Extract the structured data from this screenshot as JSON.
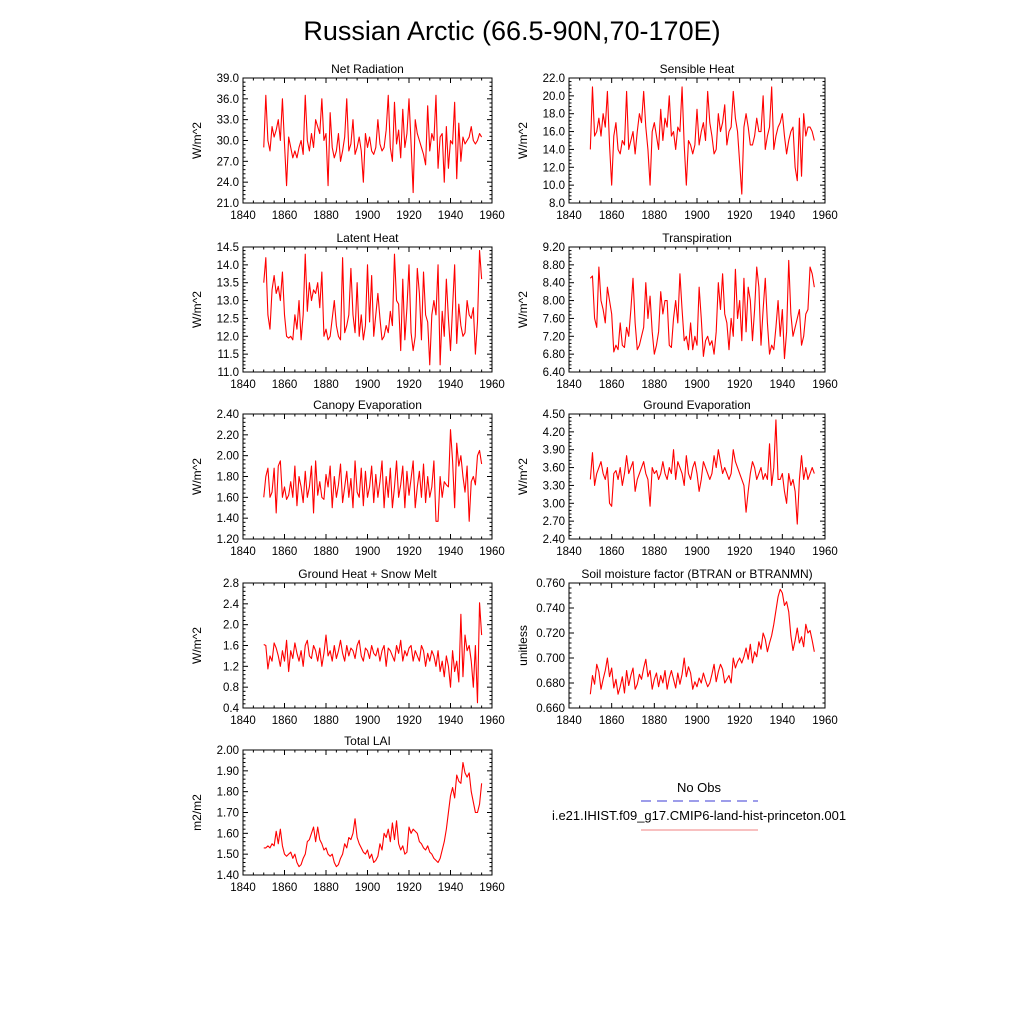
{
  "figure": {
    "title": "Russian Arctic (66.5-90N,70-170E)",
    "legend": {
      "obs_label": "No Obs",
      "model_label": "i.e21.IHIST.f09_g17.CMIP6-land-hist-princeton.001",
      "obs_color": "#3b3bd6",
      "model_color": "#f08080"
    }
  },
  "colors": {
    "series": "#ff0000",
    "axis": "#000000"
  },
  "chart_data": [
    {
      "type": "line",
      "title": "Net Radiation",
      "ylabel": "W/m^2",
      "xlim": [
        1840,
        1960
      ],
      "ylim": [
        21.0,
        39.0
      ],
      "xticks": [
        1840,
        1860,
        1880,
        1900,
        1920,
        1940,
        1960
      ],
      "yticks": [
        "21.0",
        "24.0",
        "27.0",
        "30.0",
        "33.0",
        "36.0",
        "39.0"
      ],
      "x_start": 1850,
      "values": [
        29.0,
        36.5,
        30.0,
        28.5,
        32.0,
        30.5,
        31.5,
        33.0,
        30.0,
        36.0,
        29.5,
        23.5,
        30.5,
        29.0,
        27.5,
        28.5,
        27.5,
        29.0,
        30.0,
        28.0,
        36.5,
        30.0,
        28.5,
        31.0,
        29.0,
        33.0,
        32.0,
        31.0,
        36.0,
        30.0,
        31.0,
        23.5,
        34.0,
        29.0,
        27.5,
        28.5,
        31.0,
        27.0,
        28.5,
        30.5,
        36.0,
        28.5,
        29.5,
        33.0,
        28.0,
        29.0,
        30.5,
        28.5,
        24.0,
        31.0,
        29.0,
        30.5,
        28.5,
        28.0,
        29.0,
        33.0,
        29.5,
        28.5,
        29.0,
        31.5,
        36.5,
        29.0,
        27.0,
        35.5,
        29.5,
        31.5,
        27.5,
        34.5,
        29.0,
        31.0,
        36.0,
        29.5,
        22.5,
        33.0,
        31.0,
        30.0,
        29.0,
        28.0,
        26.5,
        35.0,
        28.5,
        31.0,
        30.0,
        36.5,
        26.0,
        30.5,
        31.0,
        24.0,
        32.0,
        26.0,
        30.0,
        29.5,
        35.5,
        24.5,
        32.5,
        27.0,
        30.5,
        29.5,
        30.0,
        30.5,
        32.0,
        30.0,
        29.5,
        30.0,
        31.0,
        30.5
      ]
    },
    {
      "type": "line",
      "title": "Sensible Heat",
      "ylabel": "W/m^2",
      "xlim": [
        1840,
        1960
      ],
      "ylim": [
        8.0,
        22.0
      ],
      "xticks": [
        1840,
        1860,
        1880,
        1900,
        1920,
        1940,
        1960
      ],
      "yticks": [
        "8.0",
        "10.0",
        "12.0",
        "14.0",
        "16.0",
        "18.0",
        "20.0",
        "22.0"
      ],
      "x_start": 1850,
      "values": [
        14.0,
        21.0,
        15.5,
        16.0,
        17.5,
        15.5,
        18.0,
        16.5,
        20.5,
        14.5,
        10.0,
        15.5,
        17.0,
        14.0,
        13.5,
        15.0,
        14.5,
        20.5,
        14.0,
        15.0,
        16.0,
        13.5,
        16.0,
        18.0,
        17.0,
        20.5,
        16.5,
        14.0,
        10.0,
        16.0,
        17.0,
        15.5,
        14.0,
        18.5,
        15.0,
        17.5,
        16.5,
        20.0,
        15.5,
        16.0,
        14.0,
        16.5,
        16.0,
        21.0,
        14.5,
        10.0,
        15.0,
        14.5,
        13.5,
        14.5,
        18.5,
        14.5,
        16.0,
        17.0,
        15.0,
        20.5,
        17.0,
        15.5,
        13.5,
        14.0,
        18.0,
        16.0,
        17.0,
        19.0,
        14.5,
        16.0,
        16.5,
        20.5,
        17.5,
        16.0,
        12.5,
        9.0,
        16.5,
        18.0,
        16.5,
        14.5,
        14.5,
        15.5,
        17.5,
        16.0,
        16.0,
        20.0,
        14.0,
        15.5,
        16.5,
        21.0,
        14.0,
        15.5,
        16.5,
        17.0,
        18.0,
        15.5,
        13.5,
        15.0,
        16.0,
        16.5,
        12.0,
        10.5,
        17.5,
        11.0,
        18.0,
        15.5,
        16.5,
        16.5,
        16.0,
        15.0
      ]
    },
    {
      "type": "line",
      "title": "Latent Heat",
      "ylabel": "W/m^2",
      "xlim": [
        1840,
        1960
      ],
      "ylim": [
        11.0,
        14.5
      ],
      "xticks": [
        1840,
        1860,
        1880,
        1900,
        1920,
        1940,
        1960
      ],
      "yticks": [
        "11.0",
        "11.5",
        "12.0",
        "12.5",
        "13.0",
        "13.5",
        "14.0",
        "14.5"
      ],
      "x_start": 1850,
      "values": [
        13.5,
        14.2,
        12.6,
        12.2,
        13.3,
        13.7,
        13.2,
        13.4,
        13.0,
        13.8,
        12.6,
        12.0,
        11.95,
        12.0,
        11.9,
        12.6,
        12.2,
        13.0,
        11.9,
        12.6,
        14.3,
        12.7,
        13.5,
        13.0,
        13.3,
        13.2,
        13.5,
        12.8,
        13.8,
        12.0,
        12.2,
        11.9,
        12.0,
        12.5,
        13.0,
        12.3,
        12.0,
        11.9,
        14.2,
        12.1,
        12.3,
        12.6,
        13.9,
        12.6,
        12.1,
        13.5,
        12.0,
        12.6,
        11.9,
        12.3,
        14.0,
        12.4,
        13.7,
        12.0,
        12.6,
        13.2,
        12.5,
        11.9,
        12.0,
        12.3,
        12.1,
        12.7,
        12.3,
        14.3,
        13.0,
        12.9,
        11.6,
        13.6,
        11.9,
        12.8,
        14.0,
        12.1,
        11.6,
        12.0,
        13.9,
        13.2,
        11.9,
        13.8,
        12.6,
        12.4,
        11.2,
        12.6,
        13.0,
        12.6,
        14.0,
        11.2,
        12.7,
        12.0,
        13.6,
        12.5,
        11.6,
        12.8,
        14.0,
        11.8,
        12.9,
        12.3,
        12.0,
        12.1,
        13.0,
        12.6,
        12.5,
        12.8,
        11.5,
        12.4,
        14.4,
        13.6
      ]
    },
    {
      "type": "line",
      "title": "Transpiration",
      "ylabel": "W/m^2",
      "xlim": [
        1840,
        1960
      ],
      "ylim": [
        6.4,
        9.2
      ],
      "xticks": [
        1840,
        1860,
        1880,
        1900,
        1920,
        1940,
        1960
      ],
      "yticks": [
        "6.40",
        "6.80",
        "7.20",
        "7.60",
        "8.00",
        "8.40",
        "8.80",
        "9.20"
      ],
      "x_start": 1850,
      "values": [
        8.5,
        8.55,
        7.6,
        7.4,
        8.75,
        8.0,
        7.8,
        7.5,
        8.3,
        8.0,
        7.7,
        6.85,
        7.0,
        6.9,
        7.5,
        7.0,
        6.95,
        7.4,
        7.2,
        7.8,
        8.5,
        7.5,
        6.9,
        7.0,
        7.2,
        7.4,
        8.4,
        7.6,
        8.1,
        7.3,
        6.8,
        7.0,
        7.3,
        8.2,
        7.7,
        8.0,
        8.0,
        7.0,
        6.95,
        7.6,
        8.0,
        7.5,
        8.6,
        7.8,
        7.1,
        7.2,
        6.9,
        7.5,
        6.9,
        7.2,
        7.0,
        8.3,
        7.6,
        6.75,
        7.1,
        7.2,
        7.0,
        7.1,
        6.8,
        7.3,
        8.4,
        7.8,
        8.6,
        7.7,
        7.5,
        6.9,
        7.6,
        7.2,
        8.7,
        7.6,
        8.0,
        7.1,
        8.5,
        7.3,
        8.3,
        8.0,
        7.1,
        7.8,
        8.75,
        8.3,
        7.0,
        7.8,
        8.5,
        7.5,
        6.8,
        7.0,
        6.9,
        7.4,
        8.0,
        7.2,
        7.8,
        6.7,
        7.3,
        8.9,
        7.7,
        7.2,
        7.4,
        7.6,
        7.8,
        7.0,
        7.2,
        7.7,
        7.8,
        8.75,
        8.6,
        8.3
      ]
    },
    {
      "type": "line",
      "title": "Canopy Evaporation",
      "ylabel": "W/m^2",
      "xlim": [
        1840,
        1960
      ],
      "ylim": [
        1.2,
        2.4
      ],
      "xticks": [
        1840,
        1860,
        1880,
        1900,
        1920,
        1940,
        1960
      ],
      "yticks": [
        "1.20",
        "1.40",
        "1.60",
        "1.80",
        "2.00",
        "2.20",
        "2.40"
      ],
      "x_start": 1850,
      "values": [
        1.6,
        1.8,
        1.88,
        1.6,
        1.65,
        1.88,
        1.45,
        1.9,
        1.95,
        1.6,
        1.7,
        1.58,
        1.62,
        1.75,
        1.6,
        1.9,
        1.52,
        1.8,
        1.7,
        1.55,
        1.85,
        1.6,
        1.7,
        1.9,
        1.45,
        1.95,
        1.62,
        1.75,
        1.6,
        1.58,
        1.82,
        1.7,
        1.9,
        1.5,
        1.8,
        1.6,
        1.72,
        1.92,
        1.55,
        1.7,
        1.85,
        1.6,
        1.78,
        1.5,
        1.95,
        1.65,
        1.6,
        1.88,
        1.52,
        1.85,
        1.6,
        1.7,
        1.9,
        1.55,
        1.82,
        1.6,
        1.75,
        1.95,
        1.5,
        1.8,
        1.6,
        1.88,
        1.5,
        1.7,
        1.95,
        1.6,
        1.72,
        1.9,
        1.5,
        1.85,
        1.62,
        1.78,
        1.95,
        1.5,
        1.7,
        1.85,
        1.6,
        1.92,
        1.55,
        1.8,
        1.6,
        1.7,
        1.95,
        1.37,
        1.37,
        1.8,
        1.6,
        1.75,
        1.72,
        1.7,
        2.25,
        1.95,
        1.5,
        2.12,
        1.9,
        2.0,
        1.8,
        1.65,
        1.9,
        1.37,
        1.75,
        1.8,
        1.72,
        2.0,
        2.05,
        1.92
      ]
    },
    {
      "type": "line",
      "title": "Ground Evaporation",
      "ylabel": "W/m^2",
      "xlim": [
        1840,
        1960
      ],
      "ylim": [
        2.4,
        4.5
      ],
      "xticks": [
        1840,
        1860,
        1880,
        1900,
        1920,
        1940,
        1960
      ],
      "yticks": [
        "2.40",
        "2.70",
        "3.00",
        "3.30",
        "3.60",
        "3.90",
        "4.20",
        "4.50"
      ],
      "x_start": 1850,
      "values": [
        3.4,
        3.85,
        3.3,
        3.5,
        3.6,
        3.7,
        3.5,
        3.4,
        3.6,
        3.0,
        2.95,
        3.5,
        3.55,
        3.4,
        3.6,
        3.3,
        3.5,
        3.8,
        3.5,
        3.6,
        3.7,
        3.2,
        3.4,
        3.5,
        3.6,
        3.7,
        3.5,
        3.4,
        2.95,
        3.6,
        3.5,
        3.55,
        3.4,
        3.5,
        3.7,
        3.5,
        3.4,
        3.6,
        3.5,
        3.9,
        3.4,
        3.7,
        3.6,
        3.5,
        3.3,
        3.8,
        3.5,
        3.4,
        3.6,
        3.7,
        3.5,
        3.2,
        3.4,
        3.7,
        3.6,
        3.5,
        3.4,
        3.5,
        3.8,
        3.6,
        3.9,
        3.7,
        3.5,
        3.6,
        3.5,
        3.4,
        3.5,
        3.9,
        3.7,
        3.6,
        3.5,
        3.4,
        3.3,
        2.85,
        3.2,
        3.5,
        3.7,
        3.6,
        3.4,
        3.5,
        3.6,
        3.4,
        3.5,
        3.4,
        4.0,
        3.3,
        3.6,
        4.4,
        3.4,
        3.4,
        3.5,
        3.2,
        3.0,
        3.5,
        3.3,
        3.4,
        3.2,
        2.65,
        3.4,
        3.8,
        3.4,
        3.6,
        3.4,
        3.5,
        3.6,
        3.5
      ]
    },
    {
      "type": "line",
      "title": "Ground Heat + Snow Melt",
      "ylabel": "W/m^2",
      "xlim": [
        1840,
        1960
      ],
      "ylim": [
        0.4,
        2.8
      ],
      "xticks": [
        1840,
        1860,
        1880,
        1900,
        1920,
        1940,
        1960
      ],
      "yticks": [
        "0.4",
        "0.8",
        "1.2",
        "1.6",
        "2.0",
        "2.4",
        "2.8"
      ],
      "x_start": 1850,
      "values": [
        1.62,
        1.6,
        1.15,
        1.4,
        1.3,
        1.65,
        1.55,
        1.4,
        1.2,
        1.5,
        1.3,
        1.7,
        1.1,
        1.5,
        1.35,
        1.65,
        1.45,
        1.3,
        1.5,
        1.2,
        1.6,
        1.7,
        1.4,
        1.35,
        1.6,
        1.5,
        1.3,
        1.55,
        1.2,
        1.45,
        1.8,
        1.4,
        1.5,
        1.3,
        1.6,
        1.35,
        1.5,
        1.7,
        1.45,
        1.3,
        1.6,
        1.4,
        1.55,
        1.5,
        1.35,
        1.6,
        1.7,
        1.4,
        1.3,
        1.55,
        1.5,
        1.35,
        1.6,
        1.45,
        1.4,
        1.55,
        1.3,
        1.5,
        1.6,
        1.2,
        1.55,
        1.5,
        1.4,
        1.3,
        1.6,
        1.45,
        1.7,
        1.3,
        1.5,
        1.4,
        1.55,
        1.6,
        1.3,
        1.5,
        1.4,
        1.3,
        1.6,
        1.5,
        1.2,
        1.45,
        1.3,
        1.5,
        1.4,
        1.2,
        1.5,
        1.1,
        1.3,
        1.0,
        1.4,
        1.2,
        0.8,
        1.5,
        1.1,
        1.3,
        0.9,
        2.2,
        1.0,
        1.8,
        1.5,
        1.6,
        1.3,
        0.8,
        1.6,
        0.5,
        2.42,
        1.8
      ]
    },
    {
      "type": "line",
      "title": "Soil moisture factor (BTRAN or BTRANMN)",
      "ylabel": "unitless",
      "xlim": [
        1840,
        1960
      ],
      "ylim": [
        0.66,
        0.76
      ],
      "xticks": [
        1840,
        1860,
        1880,
        1900,
        1920,
        1940,
        1960
      ],
      "yticks": [
        "0.660",
        "0.680",
        "0.700",
        "0.720",
        "0.740",
        "0.760"
      ],
      "x_start": 1850,
      "values": [
        0.671,
        0.686,
        0.679,
        0.695,
        0.689,
        0.675,
        0.683,
        0.69,
        0.7,
        0.685,
        0.692,
        0.676,
        0.683,
        0.671,
        0.677,
        0.685,
        0.672,
        0.69,
        0.678,
        0.686,
        0.692,
        0.675,
        0.679,
        0.687,
        0.683,
        0.692,
        0.699,
        0.685,
        0.69,
        0.675,
        0.683,
        0.688,
        0.677,
        0.686,
        0.68,
        0.69,
        0.675,
        0.684,
        0.69,
        0.683,
        0.676,
        0.688,
        0.679,
        0.687,
        0.7,
        0.685,
        0.693,
        0.688,
        0.675,
        0.681,
        0.677,
        0.684,
        0.68,
        0.688,
        0.682,
        0.677,
        0.68,
        0.687,
        0.695,
        0.681,
        0.689,
        0.695,
        0.691,
        0.68,
        0.683,
        0.686,
        0.68,
        0.7,
        0.692,
        0.697,
        0.7,
        0.696,
        0.701,
        0.708,
        0.699,
        0.711,
        0.696,
        0.705,
        0.701,
        0.713,
        0.707,
        0.72,
        0.715,
        0.705,
        0.712,
        0.718,
        0.727,
        0.738,
        0.749,
        0.755,
        0.752,
        0.742,
        0.745,
        0.737,
        0.718,
        0.706,
        0.714,
        0.724,
        0.712,
        0.717,
        0.709,
        0.727,
        0.72,
        0.722,
        0.714,
        0.705
      ]
    },
    {
      "type": "line",
      "title": "Total LAI",
      "ylabel": "m2/m2",
      "xlim": [
        1840,
        1960
      ],
      "ylim": [
        1.4,
        2.0
      ],
      "xticks": [
        1840,
        1860,
        1880,
        1900,
        1920,
        1940,
        1960
      ],
      "yticks": [
        "1.40",
        "1.50",
        "1.60",
        "1.70",
        "1.80",
        "1.90",
        "2.00"
      ],
      "x_start": 1850,
      "values": [
        1.53,
        1.53,
        1.54,
        1.53,
        1.55,
        1.54,
        1.61,
        1.55,
        1.62,
        1.54,
        1.5,
        1.49,
        1.5,
        1.51,
        1.48,
        1.5,
        1.46,
        1.44,
        1.45,
        1.48,
        1.5,
        1.56,
        1.57,
        1.6,
        1.63,
        1.56,
        1.63,
        1.57,
        1.55,
        1.52,
        1.53,
        1.5,
        1.49,
        1.5,
        1.46,
        1.44,
        1.45,
        1.48,
        1.5,
        1.55,
        1.53,
        1.58,
        1.57,
        1.6,
        1.67,
        1.58,
        1.55,
        1.53,
        1.51,
        1.5,
        1.52,
        1.48,
        1.5,
        1.46,
        1.47,
        1.49,
        1.55,
        1.52,
        1.6,
        1.58,
        1.62,
        1.56,
        1.65,
        1.57,
        1.66,
        1.55,
        1.52,
        1.54,
        1.5,
        1.51,
        1.63,
        1.6,
        1.62,
        1.61,
        1.6,
        1.56,
        1.55,
        1.53,
        1.52,
        1.54,
        1.51,
        1.5,
        1.48,
        1.47,
        1.46,
        1.48,
        1.52,
        1.56,
        1.62,
        1.7,
        1.78,
        1.82,
        1.77,
        1.88,
        1.85,
        1.84,
        1.94,
        1.89,
        1.87,
        1.89,
        1.8,
        1.75,
        1.7,
        1.7,
        1.74,
        1.84
      ]
    }
  ]
}
